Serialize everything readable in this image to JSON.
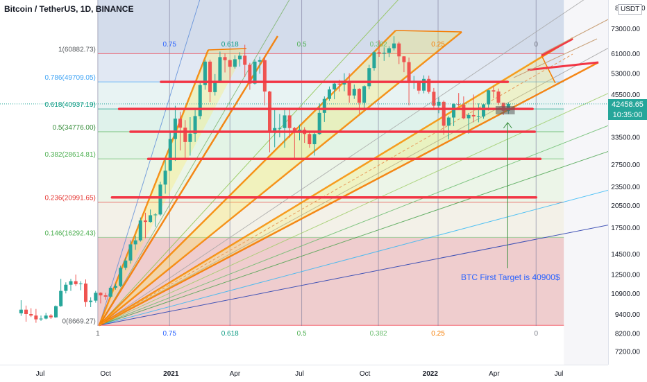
{
  "title": "Bitcoin / TetherUS, 1D, BINANCE",
  "currency": "USDT",
  "last_price": "42458.65",
  "countdown": "10:35:00",
  "annotation": "BTC First Target is 40900$",
  "colors": {
    "fib_236": "#e53935",
    "fib_618": "#089981",
    "fib_786": "#42a5f5",
    "fib_05": "#4caf50",
    "fib_382": "#66bb6a",
    "fib_146": "#81c784",
    "support_line": "#f23645",
    "fan_line": "#f57c00",
    "arrow": "#388e3c",
    "annotation_text": "#2962ff",
    "price_badge": "#26a69a"
  },
  "chart_data": {
    "type": "candlestick",
    "title": "Bitcoin / TetherUS, 1D, BINANCE",
    "y_scale": "log",
    "ylim": [
      6800,
      86000
    ],
    "y_ticks": [
      "73000.00",
      "61000.00",
      "53000.00",
      "45500.00",
      "33500.00",
      "27500.00",
      "23500.00",
      "20500.00",
      "17500.00",
      "14500.00",
      "12500.00",
      "10900.00",
      "9400.00",
      "8200.00",
      "7200.00"
    ],
    "y_tick_values": [
      73000,
      61000,
      53000,
      45500,
      33500,
      27500,
      23500,
      20500,
      17500,
      14500,
      12500,
      10900,
      9400,
      8200,
      7200
    ],
    "top_tick_partial": "8",
    "top_tick_right": "0",
    "x_ticks": [
      "Jul",
      "Oct",
      "2021",
      "Apr",
      "Jul",
      "Oct",
      "2022",
      "Apr",
      "Jul"
    ],
    "x_tick_dates": [
      "2020-07-01",
      "2020-10-01",
      "2021-01-01",
      "2021-04-01",
      "2021-07-01",
      "2021-10-01",
      "2022-01-01",
      "2022-04-01",
      "2022-07-01"
    ],
    "fib_levels": [
      {
        "label": "1(60882.73)",
        "value": 60882.73
      },
      {
        "label": "0.786(49709.05)",
        "value": 49709.05
      },
      {
        "label": "0.618(40937.19)",
        "value": 40937.19
      },
      {
        "label": "0.5(34776.00)",
        "value": 34776.0
      },
      {
        "label": "0.382(28614.81)",
        "value": 28614.81
      },
      {
        "label": "0.236(20991.65)",
        "value": 20991.65
      },
      {
        "label": "0.146(16292.43)",
        "value": 16292.43
      },
      {
        "label": "0(8669.27)",
        "value": 8669.27
      }
    ],
    "fib_time_labels_top": [
      "0.75",
      "0.618",
      "0.5",
      "0.382",
      "0.25",
      "0"
    ],
    "fib_time_labels_bottom": [
      "1",
      "0.75",
      "0.618",
      "0.5",
      "0.382",
      "0.25",
      "0"
    ],
    "fib_time_dates": [
      "2020-09-20",
      "2020-12-30",
      "2021-03-25",
      "2021-07-04",
      "2021-10-20",
      "2022-01-12",
      "2022-05-30"
    ],
    "support_lines": [
      {
        "price": 49709,
        "from": "2020-12-18",
        "to": "2022-04-20"
      },
      {
        "price": 40937,
        "from": "2020-10-20",
        "to": "2022-05-25"
      },
      {
        "price": 34776,
        "from": "2020-11-05",
        "to": "2022-05-28"
      },
      {
        "price": 28614,
        "from": "2020-11-30",
        "to": "2022-06-05"
      },
      {
        "price": 21700,
        "from": "2020-10-10",
        "to": "2022-05-30"
      }
    ],
    "target_box": {
      "from": "2022-04-03",
      "to": "2022-04-30",
      "low": 39400,
      "high": 41800
    },
    "target_price": 40900,
    "last_price": 42458.65,
    "candles_step_days": 7,
    "candles": [
      [
        "2020-06-01",
        9450,
        10380,
        9280,
        9700
      ],
      [
        "2020-06-08",
        9700,
        9990,
        8900,
        9400
      ],
      [
        "2020-06-15",
        9400,
        9800,
        9200,
        9300
      ],
      [
        "2020-06-22",
        9300,
        9750,
        8830,
        9050
      ],
      [
        "2020-06-29",
        9050,
        9300,
        8950,
        9100
      ],
      [
        "2020-07-06",
        9100,
        9480,
        9050,
        9300
      ],
      [
        "2020-07-13",
        9300,
        9400,
        9080,
        9180
      ],
      [
        "2020-07-20",
        9180,
        10000,
        9150,
        9950
      ],
      [
        "2020-07-27",
        9950,
        12100,
        9900,
        11100
      ],
      [
        "2020-08-03",
        11100,
        11800,
        10900,
        11600
      ],
      [
        "2020-08-10",
        11600,
        12100,
        11100,
        11900
      ],
      [
        "2020-08-17",
        11900,
        12480,
        11500,
        11650
      ],
      [
        "2020-08-24",
        11650,
        11900,
        11150,
        11700
      ],
      [
        "2020-08-31",
        11700,
        12050,
        9900,
        10250
      ],
      [
        "2020-09-07",
        10250,
        10600,
        9880,
        10350
      ],
      [
        "2020-09-14",
        10350,
        11100,
        10200,
        10950
      ],
      [
        "2020-09-21",
        10950,
        10990,
        10150,
        10750
      ],
      [
        "2020-09-28",
        10750,
        10950,
        10400,
        10650
      ],
      [
        "2020-10-05",
        10650,
        11480,
        10550,
        11350
      ],
      [
        "2020-10-12",
        11350,
        11700,
        11200,
        11500
      ],
      [
        "2020-10-19",
        11500,
        13300,
        11400,
        13100
      ],
      [
        "2020-10-26",
        13100,
        14100,
        12900,
        13800
      ],
      [
        "2020-11-02",
        13800,
        15950,
        13500,
        15500
      ],
      [
        "2020-11-09",
        15500,
        16500,
        14900,
        15950
      ],
      [
        "2020-11-16",
        15950,
        18800,
        15800,
        18400
      ],
      [
        "2020-11-23",
        18400,
        19450,
        16200,
        18200
      ],
      [
        "2020-11-30",
        18200,
        19900,
        18100,
        19100
      ],
      [
        "2020-12-07",
        19100,
        19400,
        17600,
        19200
      ],
      [
        "2020-12-14",
        19200,
        24300,
        19000,
        23800
      ],
      [
        "2020-12-21",
        23800,
        28400,
        22300,
        26300
      ],
      [
        "2020-12-28",
        26300,
        34800,
        26200,
        33000
      ],
      [
        "2021-01-04",
        33000,
        41900,
        28200,
        38200
      ],
      [
        "2021-01-11",
        38200,
        40100,
        30400,
        35800
      ],
      [
        "2021-01-18",
        35800,
        37800,
        28800,
        32300
      ],
      [
        "2021-01-25",
        32300,
        38600,
        29300,
        34300
      ],
      [
        "2021-02-01",
        34300,
        40900,
        32300,
        38900
      ],
      [
        "2021-02-08",
        38900,
        49700,
        38000,
        48600
      ],
      [
        "2021-02-15",
        48600,
        58300,
        47000,
        57500
      ],
      [
        "2021-02-22",
        57500,
        58300,
        43000,
        46200
      ],
      [
        "2021-03-01",
        46200,
        52600,
        45100,
        49500
      ],
      [
        "2021-03-08",
        49500,
        61800,
        49300,
        59400
      ],
      [
        "2021-03-15",
        59400,
        61000,
        53200,
        58100
      ],
      [
        "2021-03-22",
        58100,
        58400,
        50400,
        55400
      ],
      [
        "2021-03-29",
        55400,
        60200,
        54700,
        58500
      ],
      [
        "2021-04-05",
        58500,
        61500,
        55500,
        60000
      ],
      [
        "2021-04-12",
        60000,
        64900,
        51500,
        56200
      ],
      [
        "2021-04-19",
        56200,
        57000,
        47000,
        49100
      ],
      [
        "2021-04-26",
        49100,
        58400,
        48800,
        57500
      ],
      [
        "2021-05-03",
        57500,
        59600,
        52700,
        58100
      ],
      [
        "2021-05-10",
        58100,
        59600,
        42000,
        46400
      ],
      [
        "2021-05-17",
        46400,
        46600,
        30000,
        34900
      ],
      [
        "2021-05-24",
        34900,
        40900,
        31100,
        35700
      ],
      [
        "2021-05-31",
        35700,
        39500,
        33400,
        35700
      ],
      [
        "2021-06-07",
        35700,
        41300,
        31000,
        39100
      ],
      [
        "2021-06-14",
        39100,
        41300,
        33300,
        35700
      ],
      [
        "2021-06-21",
        35700,
        36000,
        28800,
        34700
      ],
      [
        "2021-06-28",
        34700,
        36600,
        32700,
        35300
      ],
      [
        "2021-07-05",
        35300,
        35900,
        32100,
        34200
      ],
      [
        "2021-07-12",
        34200,
        34700,
        31000,
        31800
      ],
      [
        "2021-07-19",
        31800,
        34500,
        29300,
        34200
      ],
      [
        "2021-07-26",
        34200,
        42600,
        34000,
        39800
      ],
      [
        "2021-08-02",
        39800,
        44800,
        37300,
        44000
      ],
      [
        "2021-08-09",
        44000,
        48100,
        43400,
        47100
      ],
      [
        "2021-08-16",
        47100,
        49400,
        43900,
        49100
      ],
      [
        "2021-08-23",
        49100,
        50500,
        46400,
        48800
      ],
      [
        "2021-08-30",
        48800,
        52900,
        46500,
        49900
      ],
      [
        "2021-09-06",
        49900,
        52900,
        42800,
        45100
      ],
      [
        "2021-09-13",
        45100,
        48800,
        44000,
        47300
      ],
      [
        "2021-09-20",
        47300,
        47500,
        39600,
        42800
      ],
      [
        "2021-09-27",
        42800,
        48500,
        40700,
        48200
      ],
      [
        "2021-10-04",
        48200,
        56200,
        47200,
        54900
      ],
      [
        "2021-10-11",
        54900,
        62000,
        53900,
        61500
      ],
      [
        "2021-10-18",
        61500,
        67000,
        59500,
        60900
      ],
      [
        "2021-10-25",
        60900,
        63700,
        57800,
        61300
      ],
      [
        "2021-11-01",
        61300,
        64200,
        59400,
        63300
      ],
      [
        "2021-11-08",
        63300,
        69000,
        62300,
        65500
      ],
      [
        "2021-11-15",
        65500,
        66300,
        56500,
        59700
      ],
      [
        "2021-11-22",
        59700,
        59800,
        53300,
        57300
      ],
      [
        "2021-11-29",
        57300,
        59200,
        42000,
        49400
      ],
      [
        "2021-12-06",
        49400,
        51900,
        47300,
        50100
      ],
      [
        "2021-12-13",
        50100,
        49500,
        45600,
        46700
      ],
      [
        "2021-12-20",
        46700,
        52100,
        45800,
        50800
      ],
      [
        "2021-12-27",
        50800,
        52000,
        45700,
        46300
      ],
      [
        "2022-01-03",
        46300,
        47600,
        40700,
        41900
      ],
      [
        "2022-01-10",
        41900,
        44500,
        39700,
        43100
      ],
      [
        "2022-01-17",
        43100,
        43500,
        34000,
        36300
      ],
      [
        "2022-01-24",
        36300,
        38900,
        32900,
        38500
      ],
      [
        "2022-01-31",
        38500,
        42600,
        36200,
        42400
      ],
      [
        "2022-02-07",
        42400,
        45900,
        41700,
        42200
      ],
      [
        "2022-02-14",
        42200,
        44800,
        38000,
        38300
      ],
      [
        "2022-02-21",
        38300,
        39800,
        34300,
        39200
      ],
      [
        "2022-02-28",
        39200,
        45400,
        37200,
        38800
      ],
      [
        "2022-03-07",
        38800,
        42600,
        37200,
        38800
      ],
      [
        "2022-03-14",
        38800,
        42400,
        38200,
        42300
      ],
      [
        "2022-03-21",
        42300,
        46900,
        40500,
        46800
      ],
      [
        "2022-03-28",
        46800,
        48200,
        44200,
        46400
      ],
      [
        "2022-04-04",
        46400,
        47400,
        42100,
        42800
      ],
      [
        "2022-04-11",
        42800,
        42500,
        39200,
        40400
      ],
      [
        "2022-04-18",
        40400,
        42900,
        39500,
        42458.65
      ]
    ]
  }
}
